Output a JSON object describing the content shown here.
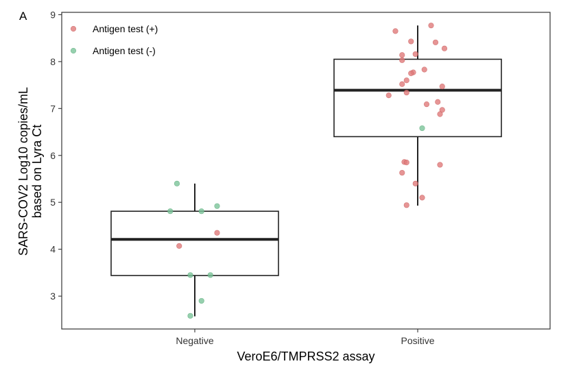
{
  "chart_data": {
    "type": "box-jitter",
    "panel_label": "A",
    "xlabel": "VeroE6/TMPRSS2 assay",
    "ylabel_line1": "SARS-COV2 Log10 copies/mL",
    "ylabel_line2": "based on Lyra Ct",
    "categories": [
      "Negative",
      "Positive"
    ],
    "ylim": [
      2.3,
      9.05
    ],
    "yticks": [
      "3",
      "4",
      "5",
      "6",
      "7",
      "8",
      "9"
    ],
    "grid": false,
    "legend_position": "top-left",
    "legend": [
      {
        "label": "Antigen test (+)",
        "color": "#e07b7b"
      },
      {
        "label": "Antigen test (-)",
        "color": "#7cc49a"
      }
    ],
    "boxes": [
      {
        "category": "Negative",
        "whisker_low": 2.57,
        "q1": 3.44,
        "median": 4.21,
        "q3": 4.81,
        "whisker_high": 5.4
      },
      {
        "category": "Positive",
        "whisker_low": 4.93,
        "q1": 6.4,
        "median": 7.39,
        "q3": 8.05,
        "whisker_high": 8.77
      }
    ],
    "points": [
      {
        "category": "Negative",
        "jitter": -0.08,
        "y": 5.4,
        "test": "-"
      },
      {
        "category": "Negative",
        "jitter": -0.11,
        "y": 4.81,
        "test": "-"
      },
      {
        "category": "Negative",
        "jitter": 0.03,
        "y": 4.81,
        "test": "-"
      },
      {
        "category": "Negative",
        "jitter": 0.1,
        "y": 4.92,
        "test": "-"
      },
      {
        "category": "Negative",
        "jitter": 0.1,
        "y": 4.35,
        "test": "+"
      },
      {
        "category": "Negative",
        "jitter": -0.07,
        "y": 4.07,
        "test": "+"
      },
      {
        "category": "Negative",
        "jitter": -0.02,
        "y": 3.45,
        "test": "-"
      },
      {
        "category": "Negative",
        "jitter": 0.07,
        "y": 3.45,
        "test": "-"
      },
      {
        "category": "Negative",
        "jitter": 0.03,
        "y": 2.9,
        "test": "-"
      },
      {
        "category": "Negative",
        "jitter": -0.02,
        "y": 2.58,
        "test": "-"
      },
      {
        "category": "Positive",
        "jitter": 0.06,
        "y": 8.77,
        "test": "+"
      },
      {
        "category": "Positive",
        "jitter": -0.1,
        "y": 8.65,
        "test": "+"
      },
      {
        "category": "Positive",
        "jitter": 0.08,
        "y": 8.41,
        "test": "+"
      },
      {
        "category": "Positive",
        "jitter": -0.03,
        "y": 8.43,
        "test": "+"
      },
      {
        "category": "Positive",
        "jitter": 0.12,
        "y": 8.28,
        "test": "+"
      },
      {
        "category": "Positive",
        "jitter": -0.07,
        "y": 8.14,
        "test": "+"
      },
      {
        "category": "Positive",
        "jitter": -0.01,
        "y": 8.16,
        "test": "+"
      },
      {
        "category": "Positive",
        "jitter": -0.07,
        "y": 8.03,
        "test": "+"
      },
      {
        "category": "Positive",
        "jitter": 0.03,
        "y": 7.83,
        "test": "+"
      },
      {
        "category": "Positive",
        "jitter": -0.02,
        "y": 7.77,
        "test": "+"
      },
      {
        "category": "Positive",
        "jitter": -0.03,
        "y": 7.75,
        "test": "+"
      },
      {
        "category": "Positive",
        "jitter": -0.05,
        "y": 7.6,
        "test": "+"
      },
      {
        "category": "Positive",
        "jitter": -0.07,
        "y": 7.52,
        "test": "+"
      },
      {
        "category": "Positive",
        "jitter": 0.11,
        "y": 7.47,
        "test": "+"
      },
      {
        "category": "Positive",
        "jitter": -0.05,
        "y": 7.34,
        "test": "+"
      },
      {
        "category": "Positive",
        "jitter": -0.13,
        "y": 7.28,
        "test": "+"
      },
      {
        "category": "Positive",
        "jitter": 0.09,
        "y": 7.14,
        "test": "+"
      },
      {
        "category": "Positive",
        "jitter": 0.04,
        "y": 7.09,
        "test": "+"
      },
      {
        "category": "Positive",
        "jitter": 0.11,
        "y": 6.97,
        "test": "+"
      },
      {
        "category": "Positive",
        "jitter": 0.1,
        "y": 6.88,
        "test": "+"
      },
      {
        "category": "Positive",
        "jitter": 0.02,
        "y": 6.58,
        "test": "-"
      },
      {
        "category": "Positive",
        "jitter": -0.06,
        "y": 5.86,
        "test": "+"
      },
      {
        "category": "Positive",
        "jitter": -0.05,
        "y": 5.85,
        "test": "+"
      },
      {
        "category": "Positive",
        "jitter": 0.1,
        "y": 5.8,
        "test": "+"
      },
      {
        "category": "Positive",
        "jitter": -0.07,
        "y": 5.63,
        "test": "+"
      },
      {
        "category": "Positive",
        "jitter": -0.01,
        "y": 5.4,
        "test": "+"
      },
      {
        "category": "Positive",
        "jitter": 0.02,
        "y": 5.1,
        "test": "+"
      },
      {
        "category": "Positive",
        "jitter": -0.05,
        "y": 4.94,
        "test": "+"
      }
    ]
  }
}
